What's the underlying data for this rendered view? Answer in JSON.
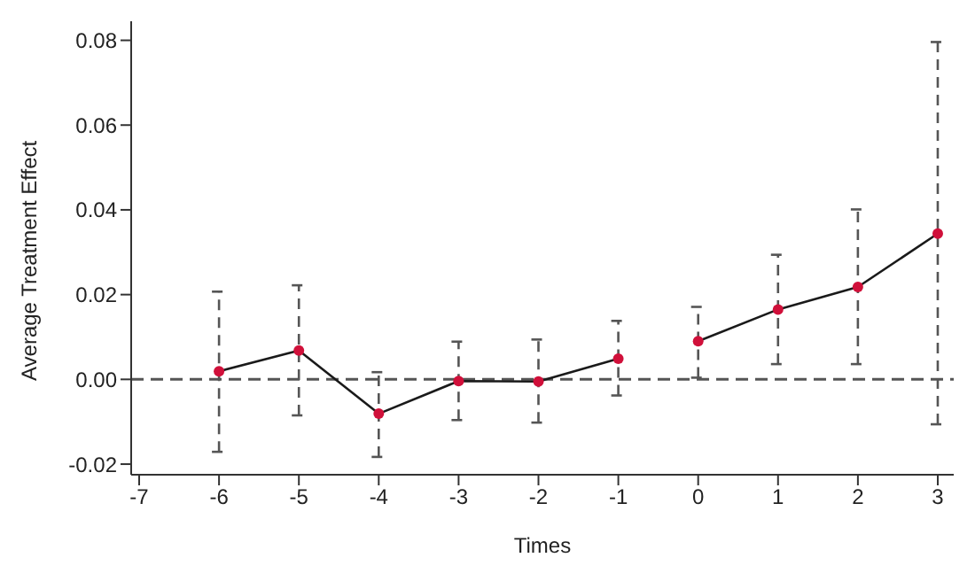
{
  "chart_data": {
    "type": "line",
    "xlabel": "Times",
    "ylabel": "Average Treatment Effect",
    "xlim": [
      -7.1,
      3.2
    ],
    "xticks": [
      -7,
      -6,
      -5,
      -4,
      -3,
      -2,
      -1,
      0,
      1,
      2,
      3
    ],
    "ylim": [
      -0.0225,
      0.0845
    ],
    "yticks": [
      {
        "value": -0.02,
        "label": "-0.02"
      },
      {
        "value": 0,
        "label": "0.00"
      },
      {
        "value": 0.02,
        "label": "0.02"
      },
      {
        "value": 0.04,
        "label": "0.04"
      },
      {
        "value": 0.06,
        "label": "0.06"
      },
      {
        "value": 0.08,
        "label": "0.08"
      }
    ],
    "series": [
      {
        "color": "#1a1a1a",
        "x": [
          -6,
          -5,
          -4,
          -3,
          -2,
          -1
        ],
        "values": [
          0.0019,
          0.0068,
          -0.0081,
          -0.0004,
          -0.0005,
          0.0049
        ],
        "errors": [
          [
            -0.0171,
            0.0207
          ],
          [
            -0.0085,
            0.0222
          ],
          [
            -0.0183,
            0.0017
          ],
          [
            -0.0096,
            0.0089
          ],
          [
            -0.0102,
            0.0094
          ],
          [
            -0.0038,
            0.0138
          ]
        ]
      },
      {
        "color": "#1a1a1a",
        "x": [
          0,
          1,
          2,
          3
        ],
        "values": [
          0.009,
          0.0165,
          0.0218,
          0.0344
        ],
        "errors": [
          [
            0.0004,
            0.0171
          ],
          [
            0.0036,
            0.0294
          ],
          [
            0.0036,
            0.0401
          ],
          [
            -0.0106,
            0.0796
          ]
        ]
      }
    ],
    "marker": "circle",
    "line_style": "solid",
    "grid": false,
    "ref_lines": [
      {
        "axis": "y",
        "value": 0,
        "color": "#555555",
        "line_style": "dashed"
      }
    ]
  }
}
